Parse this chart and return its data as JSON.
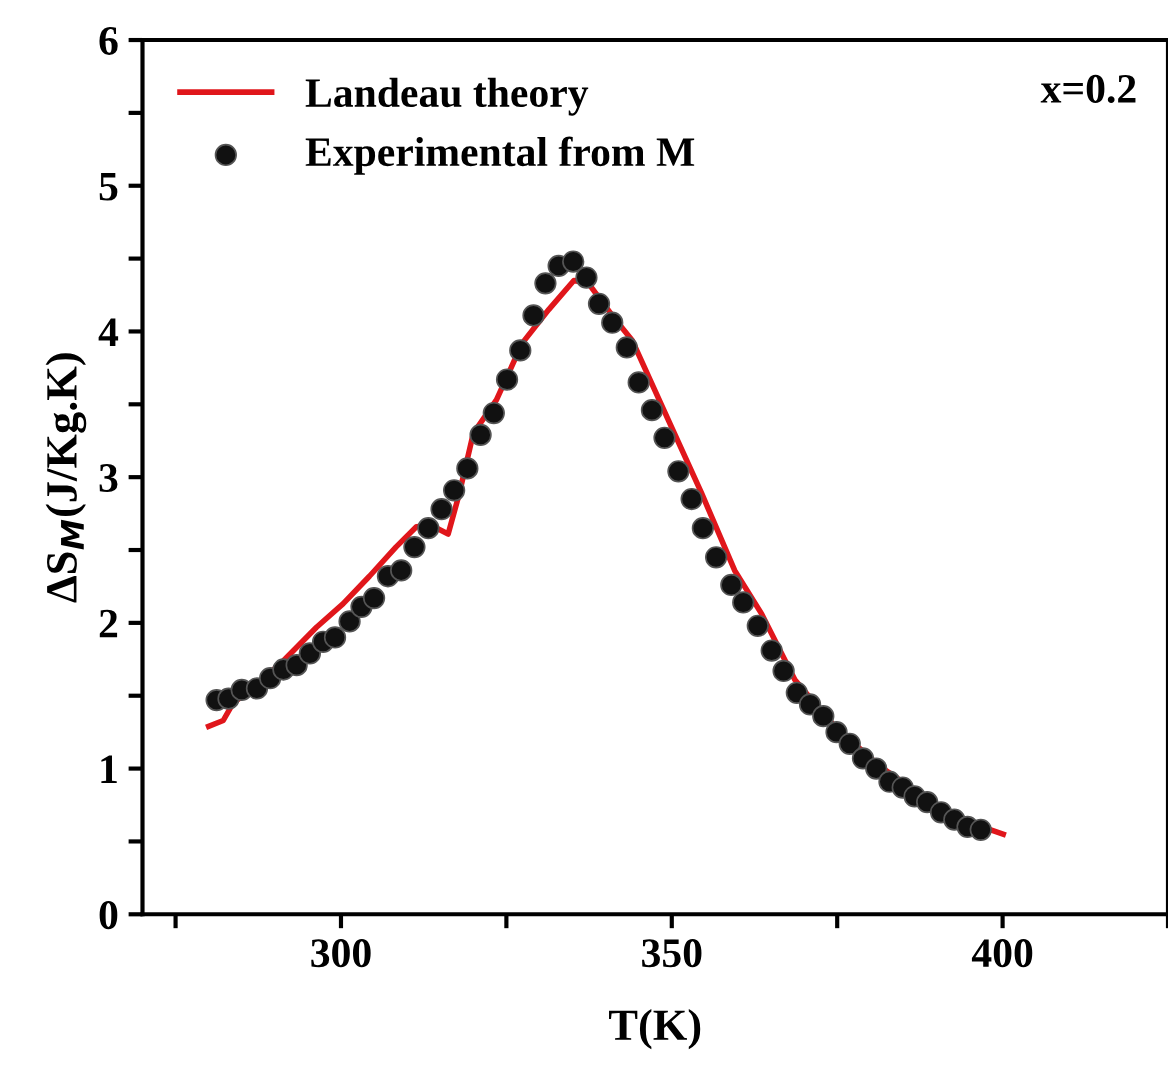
{
  "chart_data": {
    "type": "line",
    "xlabel": "T(K)",
    "ylabel": "ΔS$_{M}$(J/Kg.K)",
    "annotations": [
      "x=0.2"
    ],
    "xlim": [
      270,
      425
    ],
    "ylim": [
      0,
      6
    ],
    "xticks": [
      {
        "value": 275,
        "label": null
      },
      300,
      {
        "value": 325,
        "label": null
      },
      350,
      {
        "value": 375,
        "label": null
      },
      400,
      {
        "value": 425,
        "label": null
      }
    ],
    "yticks": [
      0,
      {
        "value": 0.5,
        "label": null
      },
      1,
      {
        "value": 1.5,
        "label": null
      },
      2,
      {
        "value": 2.5,
        "label": null
      },
      3,
      {
        "value": 3.5,
        "label": null
      },
      4,
      {
        "value": 4.5,
        "label": null
      },
      5,
      {
        "value": 5.5,
        "label": null
      },
      6
    ],
    "legend": "top left",
    "grid": false,
    "series": [
      {
        "name": "Landeau theory",
        "color": "#e0161b",
        "marker": "none",
        "line_style": "solid",
        "x": [
          280.0,
          282.2,
          283.7,
          286.9,
          291.3,
          296.3,
          300.3,
          304.3,
          308.3,
          311.4,
          313.6,
          316.2,
          317.9,
          320.0,
          323.5,
          327.4,
          331.4,
          335.2,
          337.4,
          341.5,
          344.0,
          349.5,
          354.5,
          359.5,
          363.6,
          368.6,
          374.6,
          381.6,
          389.6,
          395.6,
          400.1
        ],
        "values": [
          1.29,
          1.33,
          1.45,
          1.56,
          1.74,
          1.97,
          2.13,
          2.32,
          2.52,
          2.66,
          2.67,
          2.61,
          2.89,
          3.3,
          3.53,
          3.92,
          4.15,
          4.35,
          4.33,
          4.08,
          3.94,
          3.39,
          2.89,
          2.36,
          2.06,
          1.61,
          1.29,
          1.01,
          0.76,
          0.62,
          0.55
        ]
      },
      {
        "name": "Experimental from M",
        "type": "scatter",
        "color": "#111111",
        "marker": "circle",
        "x": [
          281.2,
          283.0,
          285.0,
          287.3,
          289.3,
          291.3,
          293.3,
          295.3,
          297.3,
          299.1,
          301.3,
          303.1,
          305.0,
          307.1,
          309.1,
          311.1,
          313.2,
          315.2,
          317.1,
          319.1,
          321.1,
          323.1,
          325.1,
          327.1,
          329.1,
          330.9,
          332.9,
          335.1,
          337.1,
          339.0,
          341.0,
          343.2,
          345.0,
          347.0,
          348.9,
          351.0,
          353.0,
          354.7,
          356.7,
          359.0,
          360.8,
          363.0,
          365.1,
          366.9,
          368.9,
          370.9,
          372.9,
          374.9,
          376.9,
          378.9,
          380.9,
          382.9,
          384.9,
          386.7,
          388.6,
          390.7,
          392.7,
          394.7,
          396.7
        ],
        "values": [
          1.47,
          1.48,
          1.54,
          1.55,
          1.62,
          1.68,
          1.71,
          1.79,
          1.87,
          1.9,
          2.01,
          2.11,
          2.17,
          2.32,
          2.36,
          2.52,
          2.65,
          2.78,
          2.91,
          3.06,
          3.29,
          3.44,
          3.67,
          3.87,
          4.11,
          4.33,
          4.45,
          4.48,
          4.37,
          4.19,
          4.06,
          3.89,
          3.65,
          3.46,
          3.27,
          3.04,
          2.85,
          2.65,
          2.45,
          2.26,
          2.14,
          1.98,
          1.81,
          1.67,
          1.52,
          1.44,
          1.36,
          1.25,
          1.17,
          1.07,
          1.0,
          0.91,
          0.87,
          0.81,
          0.77,
          0.7,
          0.65,
          0.6,
          0.58
        ]
      }
    ]
  }
}
